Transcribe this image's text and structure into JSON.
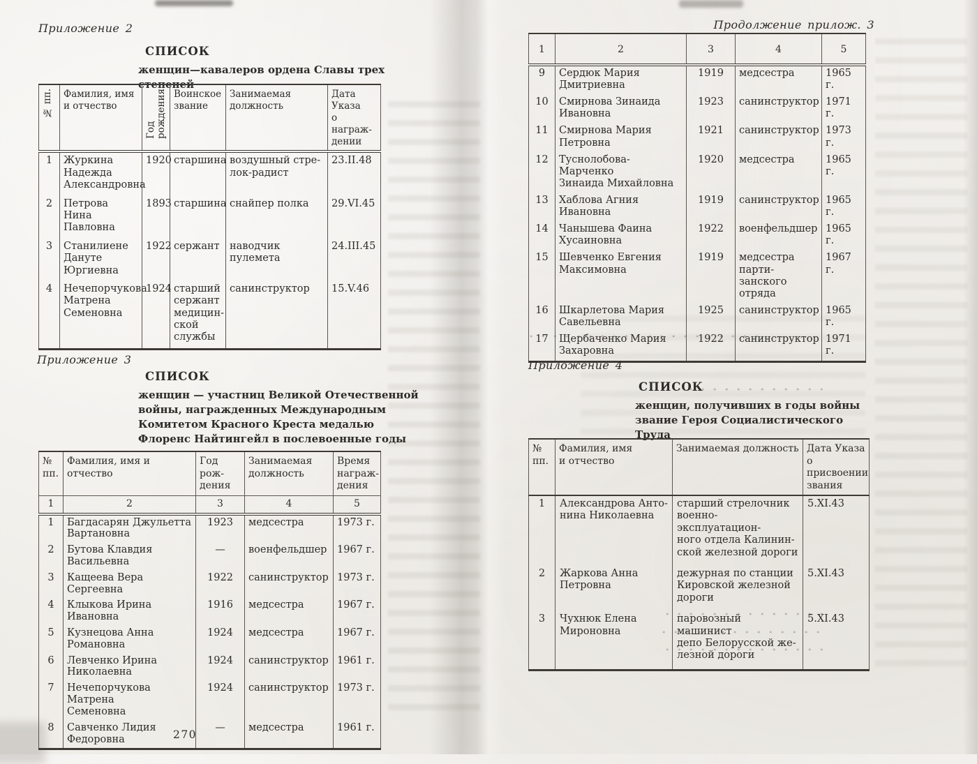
{
  "colors": {
    "paper": "#f1efeb",
    "ink": "#2e2c29",
    "rule": "#3d3a35"
  },
  "left_page": {
    "appendix_2": {
      "label": "Приложение 2",
      "heading": "СПИСОК",
      "subheading": "женщин—кавалеров ордена Славы трех степеней",
      "table": {
        "headers": [
          "№ пп.",
          "Фамилия, имя\nи отчество",
          "Год\nрождения",
          "Воинское\nзвание",
          "Занимаемая\nдолжность",
          "Дата\nУказа\nо награж-\nдении"
        ],
        "rows": [
          [
            "1",
            "Журкина\nНадежда\nАлександровна",
            "1920",
            "старшина",
            "воздушный стре-\nлок-радист",
            "23.II.48"
          ],
          [
            "2",
            "Петрова Нина\nПавловна",
            "1893",
            "старшина",
            "снайпер полка",
            "29.VI.45"
          ],
          [
            "3",
            "Станилиене\nДануте\nЮргиевна",
            "1922",
            "сержант",
            "наводчик пулемета",
            "24.III.45"
          ],
          [
            "4",
            "Нечепорчукова\nМатрена\nСеменовна",
            "1924",
            "старший\nсержант\nмедицин-\nской\nслужбы",
            "санинструктор",
            "15.V.46"
          ]
        ]
      }
    },
    "appendix_3": {
      "label": "Приложение 3",
      "heading": "СПИСОК",
      "subheading": "женщин — участниц Великой Отечественной\nвойны, награжденных Международным\nКомитетом Красного Креста медалью\nФлоренс Найтингейл в послевоенные годы",
      "table": {
        "headers": [
          "№\nпп.",
          "Фамилия, имя и отчество",
          "Год рож-\nдения",
          "Занимаемая\nдолжность",
          "Время\nнаграж-\nдения"
        ],
        "column_numbers": [
          "1",
          "2",
          "3",
          "4",
          "5"
        ],
        "rows": [
          [
            "1",
            "Багдасарян Джульетта\nВартановна",
            "1923",
            "медсестра",
            "1973 г."
          ],
          [
            "2",
            "Бутова Клавдия\nВасильевна",
            "—",
            "военфельдшер",
            "1967 г."
          ],
          [
            "3",
            "Кащеева Вера Сергеевна",
            "1922",
            "санинструктор",
            "1973 г."
          ],
          [
            "4",
            "Клыкова Ирина\nИвановна",
            "1916",
            "медсестра",
            "1967 г."
          ],
          [
            "5",
            "Кузнецова Анна\nРомановна",
            "1924",
            "медсестра",
            "1967 г."
          ],
          [
            "6",
            "Левченко Ирина\nНиколаевна",
            "1924",
            "санинструктор",
            "1961 г."
          ],
          [
            "7",
            "Нечепорчукова Матрена\nСеменовна",
            "1924",
            "санинструктор",
            "1973 г."
          ],
          [
            "8",
            "Савченко Лидия\nФедоровна",
            "—",
            "медсестра",
            "1961 г."
          ]
        ]
      }
    },
    "page_number": "270"
  },
  "right_page": {
    "continuation": {
      "label": "Продолжение прилож. 3",
      "table": {
        "column_numbers": [
          "1",
          "2",
          "3",
          "4",
          "5"
        ],
        "rows": [
          [
            "9",
            "Сердюк Мария\nДмитриевна",
            "1919",
            "медсестра",
            "1965 г."
          ],
          [
            "10",
            "Смирнова Зинаида\nИвановна",
            "1923",
            "санинструктор",
            "1971 г."
          ],
          [
            "11",
            "Смирнова Мария\nПетровна",
            "1921",
            "санинструктор",
            "1973 г."
          ],
          [
            "12",
            "Туснолобова-Марченко\nЗинаида Михайловна",
            "1920",
            "медсестра",
            "1965 г."
          ],
          [
            "13",
            "Хаблова Агния Ивановна",
            "1919",
            "санинструктор",
            "1965 г."
          ],
          [
            "14",
            "Чанышева Фаина\nХусаиновна",
            "1922",
            "военфельдшер",
            "1965 г."
          ],
          [
            "15",
            "Шевченко Евгения\nМаксимовна",
            "1919",
            "медсестра парти-\nзанского отряда",
            "1967 г."
          ],
          [
            "16",
            "Шкарлетова Мария\nСавельевна",
            "1925",
            "санинструктор",
            "1965 г."
          ],
          [
            "17",
            "Щербаченко Мария\nЗахаровна",
            "1922",
            "санинструктор",
            "1971 г."
          ]
        ]
      }
    },
    "appendix_4": {
      "label": "Приложение 4",
      "heading": "СПИСОК",
      "subheading": "женщин, получивших в годы войны\nзвание Героя Социалистического Труда",
      "table": {
        "headers": [
          "№\nпп.",
          "Фамилия, имя\nи отчество",
          "Занимаемая должность",
          "Дата Указа\nо присвоении\nзвания"
        ],
        "rows": [
          [
            "1",
            "Александрова Анто-\nнина Николаевна",
            "старший стрелочник\nвоенно-эксплуатацион-\nного отдела Калинин-\nской железной дороги",
            "5.XI.43"
          ],
          [
            "2",
            "Жаркова Анна\nПетровна",
            "дежурная по станции\nКировской железной\nдороги",
            "5.XI.43"
          ],
          [
            "3",
            "Чухнюк Елена\nМироновна",
            "паровозный машинист\nдепо Белорусской же-\nлезной дороги",
            "5.XI.43"
          ]
        ]
      }
    }
  }
}
